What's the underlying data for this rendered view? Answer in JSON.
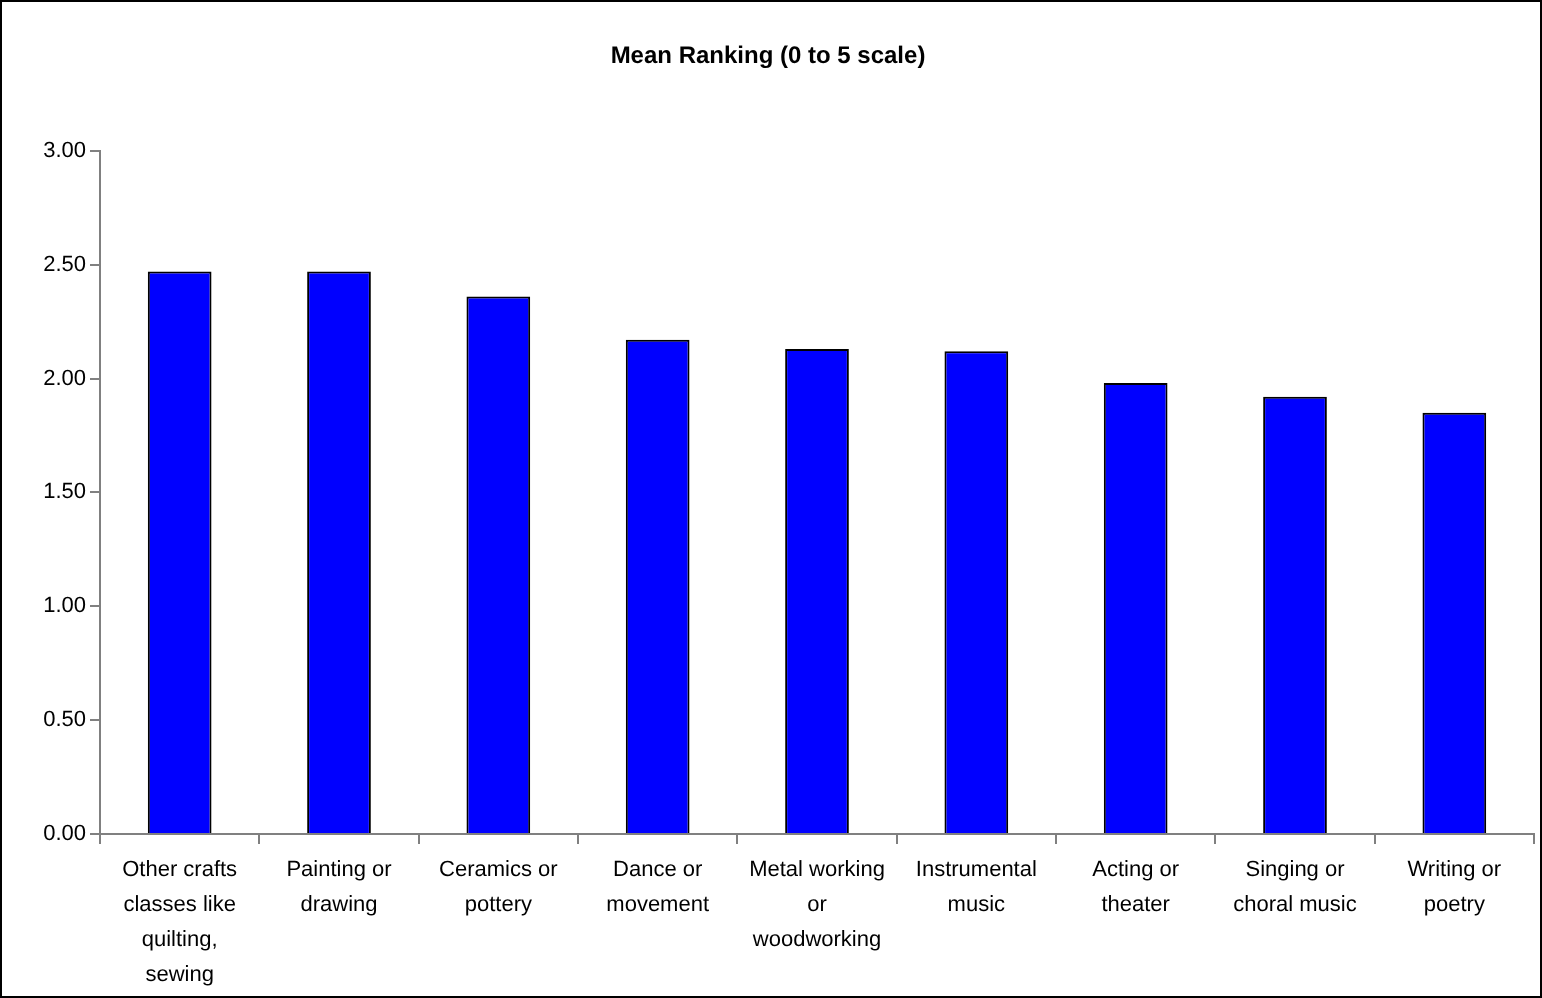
{
  "chart_data": {
    "type": "bar",
    "title": "Mean Ranking (0 to 5 scale)",
    "categories": [
      "Other crafts classes like quilting, sewing",
      "Painting or drawing",
      "Ceramics or pottery",
      "Dance or movement",
      "Metal working or woodworking",
      "Instrumental music",
      "Acting or theater",
      "Singing or choral music",
      "Writing or poetry"
    ],
    "values": [
      2.47,
      2.47,
      2.36,
      2.17,
      2.13,
      2.12,
      1.98,
      1.92,
      1.85
    ],
    "color": "#0000ff",
    "ylim": [
      0,
      3
    ],
    "yticks": [
      {
        "value": 0,
        "label": "0.00"
      },
      {
        "value": 0.5,
        "label": "0.50"
      },
      {
        "value": 1,
        "label": "1.00"
      },
      {
        "value": 1.5,
        "label": "1.50"
      },
      {
        "value": 2,
        "label": "2.00"
      },
      {
        "value": 2.5,
        "label": "2.50"
      },
      {
        "value": 3,
        "label": "3.00"
      }
    ]
  }
}
